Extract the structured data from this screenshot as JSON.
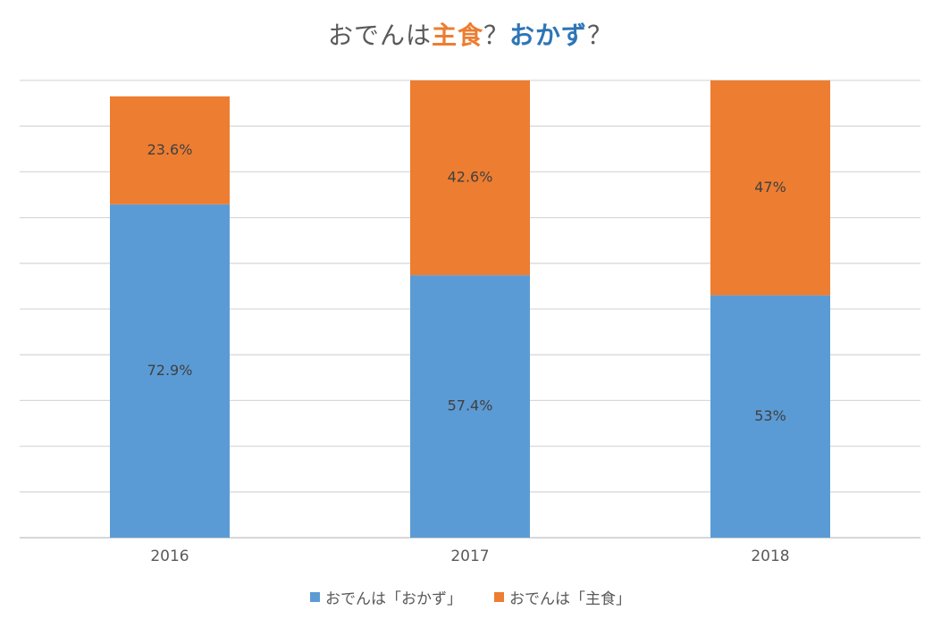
{
  "title": {
    "prefix": "おでんは",
    "option1": "主食",
    "separator1": "？",
    "option2": "おかず",
    "separator2": "？"
  },
  "colors": {
    "okazu": "#5B9BD5",
    "shushoku": "#ED7D31",
    "grid": "#D9D9D9",
    "axis_text": "#595959",
    "label_text": "#404040"
  },
  "chart_data": {
    "type": "bar",
    "stacked": true,
    "categories": [
      "2016",
      "2017",
      "2018"
    ],
    "series": [
      {
        "name": "おでんは「おかず」",
        "values": [
          72.9,
          57.4,
          53
        ],
        "labels": [
          "72.9%",
          "57.4%",
          "53%"
        ],
        "color": "#5B9BD5"
      },
      {
        "name": "おでんは「主食」",
        "values": [
          23.6,
          42.6,
          47
        ],
        "labels": [
          "23.6%",
          "42.6%",
          "47%"
        ],
        "color": "#ED7D31"
      }
    ],
    "ylim": [
      0,
      100
    ],
    "grid": true,
    "legend": "bottom"
  }
}
